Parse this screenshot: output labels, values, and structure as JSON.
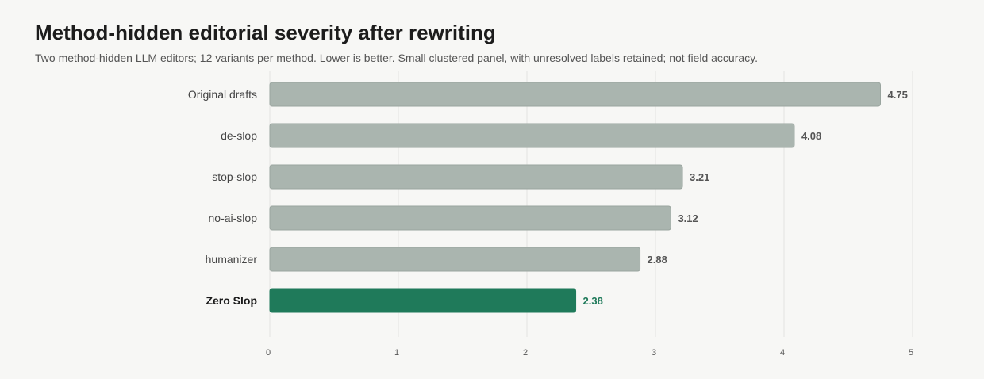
{
  "chart_data": {
    "type": "bar",
    "orientation": "horizontal",
    "title": "Method-hidden editorial severity after rewriting",
    "subtitle": "Two method-hidden LLM editors; 12 variants per method. Lower is better. Small clustered panel, with unresolved labels retained; not field accuracy.",
    "categories": [
      "Original drafts",
      "de-slop",
      "stop-slop",
      "no-ai-slop",
      "humanizer",
      "Zero Slop"
    ],
    "values": [
      4.75,
      4.08,
      3.21,
      3.12,
      2.88,
      2.38
    ],
    "value_labels": [
      "4.75",
      "4.08",
      "3.21",
      "3.12",
      "2.88",
      "2.38"
    ],
    "highlight": "Zero Slop",
    "xlim": [
      0,
      5
    ],
    "xticks": [
      0,
      1,
      2,
      3,
      4,
      5
    ],
    "xtick_labels": [
      "0",
      "1",
      "2",
      "3",
      "4",
      "5"
    ],
    "xlabel": "",
    "ylabel": "",
    "grid": "vertical",
    "legend": "none"
  },
  "colors": {
    "bar_default": "#aab5af",
    "bar_default_stroke": "#9aa59f",
    "bar_highlight": "#1f7a5a",
    "value_label_default": "#555555",
    "value_label_highlight": "#1f7a5a",
    "background": "#f7f7f5",
    "grid": "#e3e3e1"
  }
}
